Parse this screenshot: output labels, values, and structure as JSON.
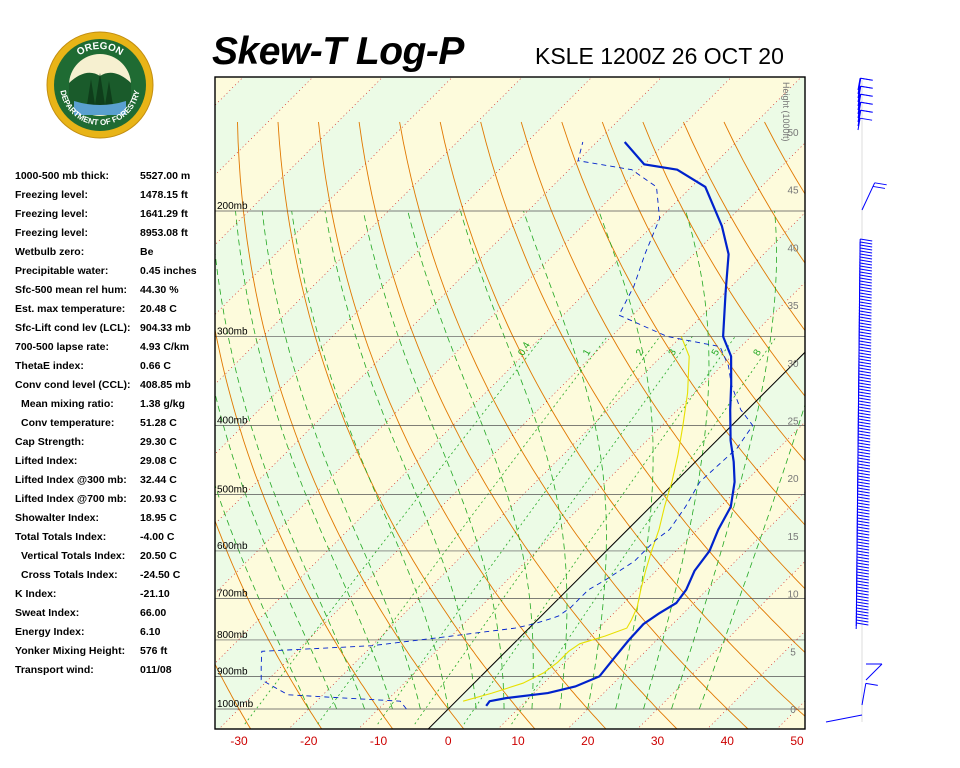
{
  "header": {
    "title": "Skew-T Log-P",
    "station_time": "KSLE 1200Z 26 OCT 20"
  },
  "logo": {
    "text_top": "OREGON",
    "text_bottom": "DEPARTMENT OF FORESTRY",
    "colors": {
      "ring": "#e8b417",
      "inner": "#1f6b33"
    }
  },
  "indices": [
    {
      "label": "1000-500 mb thick:",
      "value": "5527.00 m",
      "indent": false
    },
    {
      "label": "Freezing level:",
      "value": "1478.15 ft",
      "indent": false
    },
    {
      "label": "Freezing level:",
      "value": "1641.29 ft",
      "indent": false
    },
    {
      "label": "Freezing level:",
      "value": "8953.08 ft",
      "indent": false
    },
    {
      "label": "Wetbulb zero:",
      "value": "Be",
      "indent": false
    },
    {
      "label": "Precipitable water:",
      "value": "0.45 inches",
      "indent": false
    },
    {
      "label": "Sfc-500 mean rel hum:",
      "value": "44.30 %",
      "indent": false
    },
    {
      "label": "Est. max temperature:",
      "value": "20.48 C",
      "indent": false
    },
    {
      "label": "Sfc-Lift cond lev (LCL):",
      "value": "904.33 mb",
      "indent": false
    },
    {
      "label": "700-500 lapse rate:",
      "value": "4.93 C/km",
      "indent": false
    },
    {
      "label": "ThetaE index:",
      "value": "0.66 C",
      "indent": false
    },
    {
      "label": "Conv cond level (CCL):",
      "value": "408.85 mb",
      "indent": false
    },
    {
      "label": "Mean mixing ratio:",
      "value": "1.38 g/kg",
      "indent": true
    },
    {
      "label": "Conv temperature:",
      "value": "51.28 C",
      "indent": true
    },
    {
      "label": "Cap Strength:",
      "value": "29.30 C",
      "indent": false
    },
    {
      "label": "Lifted Index:",
      "value": "29.08 C",
      "indent": false
    },
    {
      "label": "Lifted Index @300 mb:",
      "value": "32.44 C",
      "indent": false
    },
    {
      "label": "Lifted Index @700 mb:",
      "value": "20.93 C",
      "indent": false
    },
    {
      "label": "Showalter Index:",
      "value": "18.95 C",
      "indent": false
    },
    {
      "label": "Total Totals Index:",
      "value": "-4.00 C",
      "indent": false
    },
    {
      "label": "Vertical Totals Index:",
      "value": "20.50 C",
      "indent": true
    },
    {
      "label": "Cross Totals Index:",
      "value": "-24.50 C",
      "indent": true
    },
    {
      "label": "K Index:",
      "value": "-21.10",
      "indent": false
    },
    {
      "label": "Sweat Index:",
      "value": "66.00",
      "indent": false
    },
    {
      "label": "Energy Index:",
      "value": "6.10",
      "indent": false
    },
    {
      "label": "Yonker Mixing Height:",
      "value": "576 ft",
      "indent": false
    },
    {
      "label": "Transport wind:",
      "value": "011/08",
      "indent": false
    }
  ],
  "chart_data": {
    "type": "line",
    "xlim": [
      -33,
      51
    ],
    "x_ticks": [
      -30,
      -20,
      -10,
      0,
      10,
      20,
      30,
      40,
      50
    ],
    "x_tick_color": "#cc0000",
    "pressure_levels": [
      {
        "label": "200mb",
        "p": 200
      },
      {
        "label": "300mb",
        "p": 300
      },
      {
        "label": "400mb",
        "p": 400
      },
      {
        "label": "500mb",
        "p": 500
      },
      {
        "label": "600mb",
        "p": 600
      },
      {
        "label": "700mb",
        "p": 700
      },
      {
        "label": "800mb",
        "p": 800
      },
      {
        "label": "900mb",
        "p": 900
      },
      {
        "label": "1000mb",
        "p": 1000
      }
    ],
    "height_axis": {
      "label": "Height (1000ft)",
      "ticks": [
        0,
        5,
        10,
        15,
        20,
        25,
        30,
        35,
        40,
        45,
        50
      ]
    },
    "mixing_ratio_labels": [
      "0.4",
      "1",
      "2",
      "3",
      "5",
      "8"
    ],
    "colors": {
      "temperature": "#0022cc",
      "dewpoint": "#0022cc",
      "parcel": "#e8e000",
      "dry_adiabats": "#e07800",
      "moist_adiabats": "#22a822",
      "isotherms": "#cc0000",
      "mixing_ratio": "#22a822",
      "wind_barbs": "#0000ff",
      "band_light_green": "#ecfbe6",
      "band_light_yellow": "#fdfbdc"
    },
    "series": [
      {
        "name": "Temperature",
        "style": "solid",
        "points": [
          [
            5.0,
            990
          ],
          [
            4.8,
            975
          ],
          [
            6.8,
            965
          ],
          [
            12.0,
            950
          ],
          [
            15.0,
            930
          ],
          [
            17.0,
            900
          ],
          [
            16.5,
            850
          ],
          [
            16.0,
            800
          ],
          [
            15.8,
            760
          ],
          [
            16.5,
            735
          ],
          [
            17.5,
            710
          ],
          [
            17.0,
            680
          ],
          [
            15.5,
            640
          ],
          [
            14.8,
            600
          ],
          [
            13.0,
            560
          ],
          [
            11.5,
            520
          ],
          [
            8.5,
            480
          ],
          [
            5.5,
            450
          ],
          [
            2.0,
            420
          ],
          [
            -2.5,
            380
          ],
          [
            -6.0,
            350
          ],
          [
            -10.0,
            320
          ],
          [
            -14.0,
            300
          ],
          [
            -20.0,
            260
          ],
          [
            -25.0,
            230
          ],
          [
            -30.0,
            210
          ],
          [
            -38.0,
            185
          ],
          [
            -44.5,
            175
          ],
          [
            -50.0,
            172
          ],
          [
            -56.0,
            160
          ]
        ]
      },
      {
        "name": "Dewpoint",
        "style": "dashed",
        "points": [
          [
            -6.0,
            1000
          ],
          [
            -8.0,
            975
          ],
          [
            -25.0,
            955
          ],
          [
            -31.0,
            910
          ],
          [
            -33.0,
            870
          ],
          [
            -35.0,
            830
          ],
          [
            -20.0,
            815
          ],
          [
            -10.0,
            790
          ],
          [
            -2.0,
            770
          ],
          [
            0.0,
            760
          ],
          [
            2.0,
            745
          ],
          [
            2.5,
            740
          ],
          [
            3.0,
            720
          ],
          [
            3.0,
            700
          ],
          [
            3.0,
            680
          ],
          [
            4.0,
            660
          ],
          [
            5.5,
            620
          ],
          [
            5.5,
            580
          ],
          [
            6.0,
            560
          ],
          [
            5.0,
            520
          ],
          [
            3.5,
            480
          ],
          [
            4.0,
            430
          ],
          [
            3.0,
            400
          ],
          [
            -1.0,
            380
          ],
          [
            -6.0,
            350
          ],
          [
            -9.0,
            330
          ],
          [
            -13.0,
            310
          ],
          [
            -22.0,
            300
          ],
          [
            -32.0,
            280
          ],
          [
            -34.0,
            255
          ],
          [
            -37.0,
            230
          ],
          [
            -40.0,
            205
          ],
          [
            -45.0,
            185
          ],
          [
            -51.0,
            175
          ],
          [
            -60.0,
            170
          ],
          [
            -62.0,
            160
          ]
        ]
      },
      {
        "name": "Parcel",
        "style": "solid",
        "points": [
          [
            1.0,
            975
          ],
          [
            4.0,
            950
          ],
          [
            7.0,
            920
          ],
          [
            8.5,
            890
          ],
          [
            9.0,
            860
          ],
          [
            9.0,
            830
          ],
          [
            9.5,
            810
          ],
          [
            12.0,
            790
          ],
          [
            14.0,
            770
          ],
          [
            13.5,
            750
          ],
          [
            12.5,
            720
          ],
          [
            10.5,
            680
          ],
          [
            8.5,
            640
          ],
          [
            6.5,
            600
          ],
          [
            4.5,
            560
          ],
          [
            2.0,
            520
          ],
          [
            -0.5,
            480
          ],
          [
            -3.5,
            440
          ],
          [
            -7.0,
            400
          ],
          [
            -11.0,
            360
          ],
          [
            -16.0,
            320
          ],
          [
            -20.0,
            300
          ]
        ]
      }
    ]
  }
}
